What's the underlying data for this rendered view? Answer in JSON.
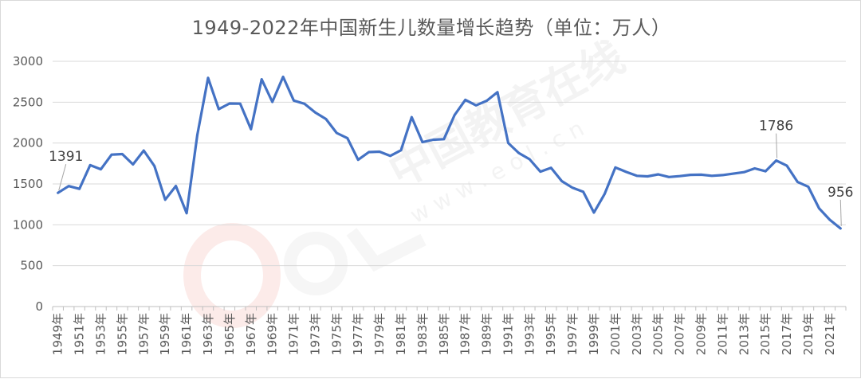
{
  "chart_data": {
    "type": "line",
    "title": "1949-2022年中国新生儿数量增长趋势（单位：万人）",
    "xlabel": "",
    "ylabel": "",
    "ylim": [
      0,
      3000
    ],
    "yticks": [
      0,
      500,
      1000,
      1500,
      2000,
      2500,
      3000
    ],
    "grid": true,
    "legend": "none",
    "line_color": "#4472C4",
    "x": [
      1949,
      1950,
      1951,
      1952,
      1953,
      1954,
      1955,
      1956,
      1957,
      1958,
      1959,
      1960,
      1961,
      1962,
      1963,
      1964,
      1965,
      1966,
      1967,
      1968,
      1969,
      1970,
      1971,
      1972,
      1973,
      1974,
      1975,
      1976,
      1977,
      1978,
      1979,
      1980,
      1981,
      1982,
      1983,
      1984,
      1985,
      1986,
      1987,
      1988,
      1989,
      1990,
      1991,
      1992,
      1993,
      1994,
      1995,
      1996,
      1997,
      1998,
      1999,
      2000,
      2001,
      2002,
      2003,
      2004,
      2005,
      2006,
      2007,
      2008,
      2009,
      2010,
      2011,
      2012,
      2013,
      2014,
      2015,
      2016,
      2017,
      2018,
      2019,
      2020,
      2021,
      2022
    ],
    "x_tick_labels": [
      "1949年",
      "1951年",
      "1953年",
      "1955年",
      "1957年",
      "1959年",
      "1961年",
      "1963年",
      "1965年",
      "1967年",
      "1969年",
      "1971年",
      "1973年",
      "1975年",
      "1977年",
      "1979年",
      "1981年",
      "1983年",
      "1985年",
      "1987年",
      "1989年",
      "1991年",
      "1993年",
      "1995年",
      "1997年",
      "1999年",
      "2001年",
      "2003年",
      "2005年",
      "2007年",
      "2009年",
      "2011年",
      "2013年",
      "2015年",
      "2017年",
      "2019年",
      "2021年"
    ],
    "values": [
      1391,
      1474,
      1440,
      1730,
      1679,
      1858,
      1865,
      1739,
      1908,
      1719,
      1307,
      1475,
      1142,
      2099,
      2797,
      2415,
      2484,
      2482,
      2169,
      2780,
      2503,
      2810,
      2520,
      2480,
      2374,
      2294,
      2123,
      2059,
      1795,
      1890,
      1894,
      1843,
      1912,
      2317,
      2011,
      2041,
      2047,
      2343,
      2529,
      2461,
      2518,
      2622,
      2001,
      1877,
      1802,
      1650,
      1697,
      1534,
      1453,
      1404,
      1149,
      1379,
      1702,
      1647,
      1599,
      1593,
      1617,
      1585,
      1595,
      1611,
      1613,
      1599,
      1608,
      1626,
      1644,
      1690,
      1655,
      1786,
      1723,
      1523,
      1465,
      1202,
      1062,
      956
    ],
    "annotations": [
      {
        "x": 1949,
        "text": "1391"
      },
      {
        "x": 2016,
        "text": "1786"
      },
      {
        "x": 2022,
        "text": "956"
      }
    ]
  },
  "watermark": {
    "text_cn": "中国教育在线",
    "text_url": "w w w . e o l . c n"
  }
}
